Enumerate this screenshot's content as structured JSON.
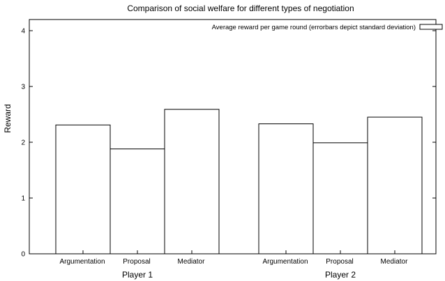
{
  "chart_data": {
    "type": "bar",
    "title": "Comparison of social welfare for different types of negotiation",
    "ylabel": "Reward",
    "xlabel": "",
    "ylim": [
      0,
      4.2
    ],
    "yticks": [
      0,
      1,
      2,
      3,
      4
    ],
    "legend_position": "top-right",
    "grid": false,
    "series": [
      {
        "name": "Average reward per game round (errorbars depict standard deviation)",
        "color": "#ffffff",
        "stroke": "#000000"
      }
    ],
    "groups": [
      {
        "label": "Player 1",
        "categories": [
          "Argumentation",
          "Proposal",
          "Mediator"
        ],
        "values": [
          2.31,
          1.88,
          2.59
        ]
      },
      {
        "label": "Player 2",
        "categories": [
          "Argumentation",
          "Proposal",
          "Mediator"
        ],
        "values": [
          2.33,
          1.99,
          2.45
        ]
      }
    ]
  }
}
